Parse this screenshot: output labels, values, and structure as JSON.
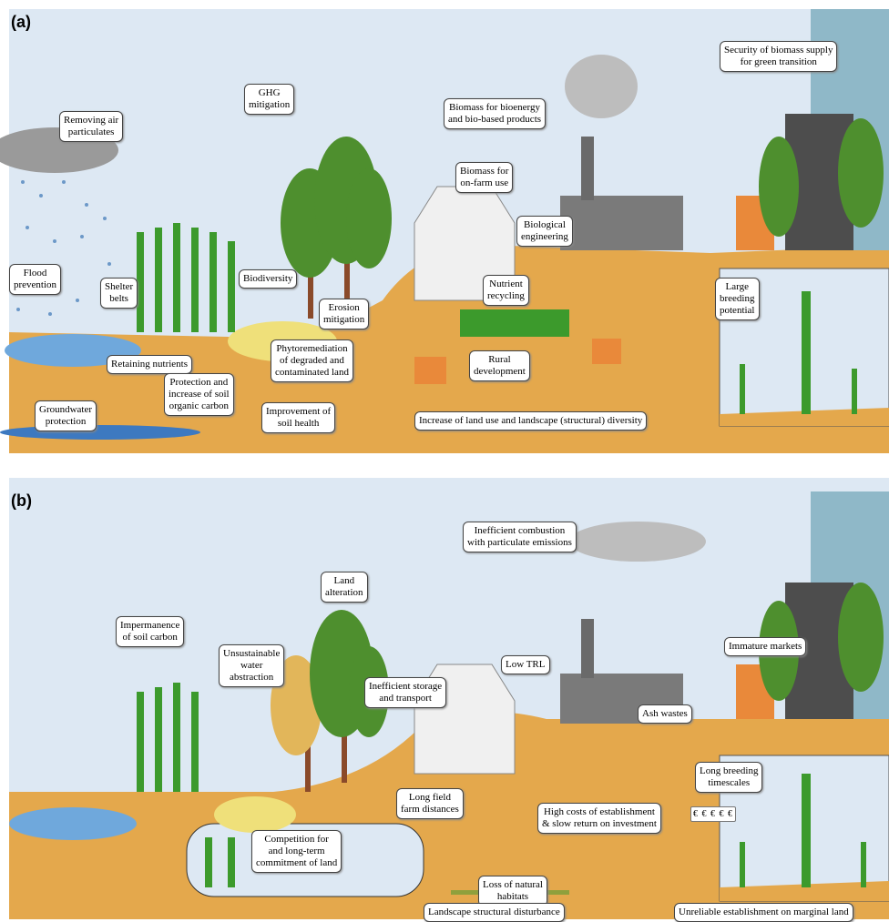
{
  "panels": [
    {
      "label": "(a)",
      "callouts": [
        {
          "lines": [
            "Removing air",
            "particulates"
          ]
        },
        {
          "lines": [
            "GHG",
            "mitigation"
          ]
        },
        {
          "lines": [
            "Biomass for bioenergy",
            "and bio-based products"
          ]
        },
        {
          "lines": [
            "Security of biomass supply",
            "for green transition"
          ]
        },
        {
          "lines": [
            "Biomass for",
            "on-farm use"
          ]
        },
        {
          "lines": [
            "Biological",
            "engineering"
          ]
        },
        {
          "lines": [
            "Flood",
            "prevention"
          ]
        },
        {
          "lines": [
            "Shelter",
            "belts"
          ]
        },
        {
          "lines": [
            "Biodiversity"
          ]
        },
        {
          "lines": [
            "Erosion",
            "mitigation"
          ]
        },
        {
          "lines": [
            "Nutrient",
            "recycling"
          ]
        },
        {
          "lines": [
            "Large",
            "breeding",
            "potential"
          ]
        },
        {
          "lines": [
            "Retaining nutrients"
          ]
        },
        {
          "lines": [
            "Phytoremediation",
            "of degraded and",
            "contaminated land"
          ]
        },
        {
          "lines": [
            "Protection and",
            "increase of soil",
            "organic carbon"
          ]
        },
        {
          "lines": [
            "Rural",
            "development"
          ]
        },
        {
          "lines": [
            "Groundwater",
            "protection"
          ]
        },
        {
          "lines": [
            "Improvement of",
            "soil health"
          ]
        },
        {
          "lines": [
            "Increase of land use and landscape (structural) diversity"
          ]
        }
      ]
    },
    {
      "label": "(b)",
      "callouts": [
        {
          "lines": [
            "Inefficient combustion",
            "with particulate emissions"
          ]
        },
        {
          "lines": [
            "Land",
            "alteration"
          ]
        },
        {
          "lines": [
            "Impermanence",
            "of soil carbon"
          ]
        },
        {
          "lines": [
            "Unsustainable",
            "water",
            "abstraction"
          ]
        },
        {
          "lines": [
            "Low TRL"
          ]
        },
        {
          "lines": [
            "Inefficient storage",
            "and transport"
          ]
        },
        {
          "lines": [
            "Immature markets"
          ]
        },
        {
          "lines": [
            "Ash wastes"
          ]
        },
        {
          "lines": [
            "Long breeding",
            "timescales"
          ]
        },
        {
          "lines": [
            "Long field",
            "farm distances"
          ]
        },
        {
          "lines": [
            "High costs of establishment",
            "& slow return on investment"
          ]
        },
        {
          "lines": [
            "Competition for",
            "and long-term",
            "commitment of land"
          ]
        },
        {
          "lines": [
            "Loss of natural",
            "habitats"
          ]
        },
        {
          "lines": [
            "Landscape structural disturbance"
          ]
        },
        {
          "lines": [
            "Unreliable establishment on marginal land"
          ]
        },
        {
          "lines": [
            "€ € € € €"
          ]
        }
      ]
    }
  ]
}
